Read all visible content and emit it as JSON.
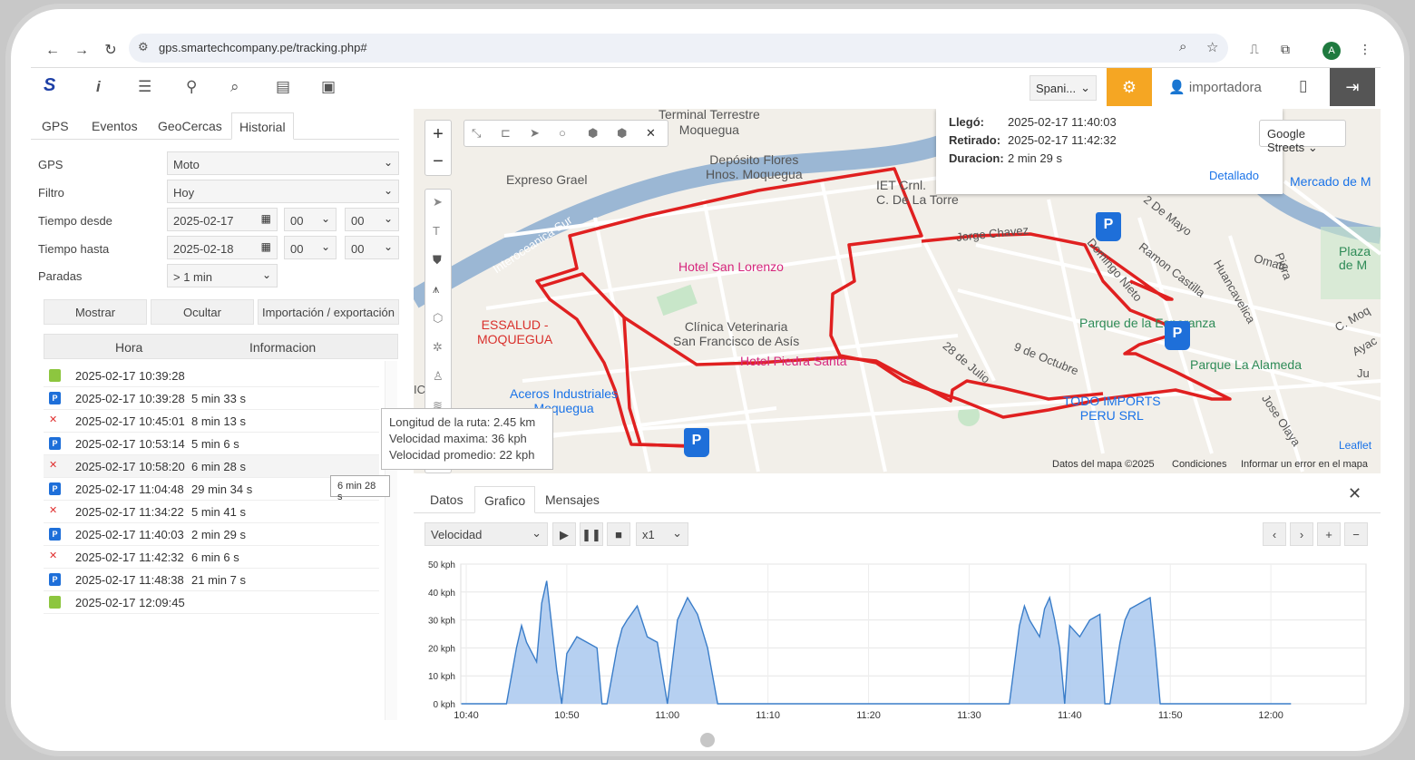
{
  "browser": {
    "url": "gps.smartechcompany.pe/tracking.php#",
    "back_icon": "arrow-left-icon",
    "forward_icon": "arrow-right-icon",
    "reload_icon": "reload-icon",
    "avatar_letter": "A"
  },
  "toolbar": {
    "logo": "S",
    "language": "Spani...",
    "user": "importadora"
  },
  "left": {
    "tabs": [
      "GPS",
      "Eventos",
      "GeoCercas",
      "Historial"
    ],
    "active_tab": "Historial",
    "form": {
      "gps_label": "GPS",
      "gps_value": "Moto",
      "filtro_label": "Filtro",
      "filtro_value": "Hoy",
      "desde_label": "Tiempo desde",
      "desde_date": "2025-02-17",
      "desde_h": "00",
      "desde_m": "00",
      "hasta_label": "Tiempo hasta",
      "hasta_date": "2025-02-18",
      "hasta_h": "00",
      "hasta_m": "00",
      "paradas_label": "Paradas",
      "paradas_value": "> 1 min"
    },
    "buttons": {
      "mostrar": "Mostrar",
      "ocultar": "Ocultar",
      "import": "Importación / exportación"
    },
    "table": {
      "col_hora": "Hora",
      "col_info": "Informacion",
      "rows": [
        {
          "icon": "play",
          "time": "2025-02-17 10:39:28",
          "dur": ""
        },
        {
          "icon": "park",
          "time": "2025-02-17 10:39:28",
          "dur": "5 min 33 s"
        },
        {
          "icon": "cross",
          "time": "2025-02-17 10:45:01",
          "dur": "8 min 13 s"
        },
        {
          "icon": "park",
          "time": "2025-02-17 10:53:14",
          "dur": "5 min 6 s"
        },
        {
          "icon": "cross",
          "time": "2025-02-17 10:58:20",
          "dur": "6 min 28 s"
        },
        {
          "icon": "park",
          "time": "2025-02-17 11:04:48",
          "dur": "29 min 34 s"
        },
        {
          "icon": "cross",
          "time": "2025-02-17 11:34:22",
          "dur": "5 min 41 s"
        },
        {
          "icon": "park",
          "time": "2025-02-17 11:40:03",
          "dur": "2 min 29 s"
        },
        {
          "icon": "cross",
          "time": "2025-02-17 11:42:32",
          "dur": "6 min 6 s"
        },
        {
          "icon": "park",
          "time": "2025-02-17 11:48:38",
          "dur": "21 min 7 s"
        },
        {
          "icon": "stop",
          "time": "2025-02-17 12:09:45",
          "dur": ""
        }
      ],
      "hover_tooltip": "6 min 28 s"
    }
  },
  "map": {
    "popup": {
      "llego_label": "Llegó:",
      "llego": "2025-02-17 11:40:03",
      "retirado_label": "Retirado:",
      "retirado": "2025-02-17 11:42:32",
      "duracion_label": "Duracion:",
      "duracion": "2 min 29 s",
      "link": "Detallado"
    },
    "layer": "Google Streets",
    "labels": {
      "terminal": "Terminal Terrestre\nMoquegua",
      "deposito": "Depósito Flores\nHnos. Moquegua",
      "expreso": "Expreso Grael",
      "iet": "IET Crnl.\nC. De La Torre",
      "intero": "Interoceanica Sur",
      "hotel_sl": "Hotel San Lorenzo",
      "essalud": "ESSALUD -\nMOQUEGUA",
      "clinica": "Clínica Veterinaria\nSan Francisco de Asís",
      "hotel_ps": "Hotel Piedra Santa",
      "aceros": "Aceros Industriales\nMoquegua",
      "jorge": "Jorge Chavez",
      "domingo": "Domingo Nieto",
      "ramon": "Ramon Castilla",
      "mayo": "2 De Mayo",
      "parque_esp": "Parque de la Esperanza",
      "parque_al": "Parque La Alameda",
      "octubre": "9 de Octubre",
      "julio": "28 de Julio",
      "todo": "TODO IMPORTS\nPERU SRL",
      "jose": "Jose Olaya",
      "mercado": "Mercado de M",
      "plaza": "Plaza\nde M",
      "omate": "Omate",
      "piura": "Piura",
      "huanca": "Huancavelica",
      "moq": "C. Moq",
      "ayac": "Ayac",
      "ayacucho2": "Ayacucho",
      "ju": "Ju",
      "ic": "IC"
    },
    "attrib": {
      "datos": "Datos del mapa ©2025",
      "cond": "Condiciones",
      "error": "Informar un error en el mapa",
      "leaflet": "Leaflet"
    },
    "route_info": {
      "longitud_label": "Longitud de la ruta:",
      "longitud": "2.45 km",
      "vmax_label": "Velocidad maxima:",
      "vmax": "36 kph",
      "vprom_label": "Velocidad promedio:",
      "vprom": "22 kph"
    }
  },
  "bottom": {
    "tabs": [
      "Datos",
      "Grafico",
      "Mensajes"
    ],
    "active_tab": "Grafico",
    "metric": "Velocidad",
    "speed_mult": "x1"
  },
  "chart_data": {
    "type": "area",
    "title": "",
    "ylabel": "",
    "xlabel": "",
    "y_ticks": [
      "0 kph",
      "10 kph",
      "20 kph",
      "30 kph",
      "40 kph",
      "50 kph"
    ],
    "x_ticks": [
      "10:40",
      "10:50",
      "11:00",
      "11:10",
      "11:20",
      "11:30",
      "11:40",
      "11:50",
      "12:00"
    ],
    "ylim": [
      0,
      50
    ],
    "xlim_minutes_after_1040": [
      0,
      90
    ],
    "x": [
      -0.5,
      4,
      5,
      5.5,
      6,
      7,
      7.5,
      8,
      8.5,
      9,
      9.5,
      10,
      11,
      12,
      13,
      13.5,
      14,
      15,
      15.5,
      16,
      17,
      18,
      19,
      20,
      21,
      22,
      23,
      24,
      25,
      27,
      50,
      54,
      55,
      55.5,
      56,
      57,
      57.5,
      58,
      58.5,
      59,
      59.5,
      60,
      61,
      62,
      63,
      63.5,
      64,
      65,
      65.5,
      66,
      68,
      68.5,
      69,
      70,
      71,
      72,
      73,
      78,
      82
    ],
    "values": [
      0,
      0,
      20,
      28,
      22,
      15,
      36,
      44,
      28,
      12,
      0,
      18,
      24,
      22,
      20,
      0,
      0,
      20,
      27,
      30,
      35,
      24,
      22,
      0,
      30,
      38,
      32,
      20,
      0,
      0,
      0,
      0,
      28,
      35,
      30,
      24,
      34,
      38,
      30,
      20,
      0,
      28,
      24,
      30,
      32,
      0,
      0,
      22,
      30,
      34,
      38,
      20,
      0,
      0,
      0,
      0,
      0,
      0,
      0
    ],
    "series": [
      {
        "name": "",
        "color": "#3a7dc9"
      }
    ]
  }
}
